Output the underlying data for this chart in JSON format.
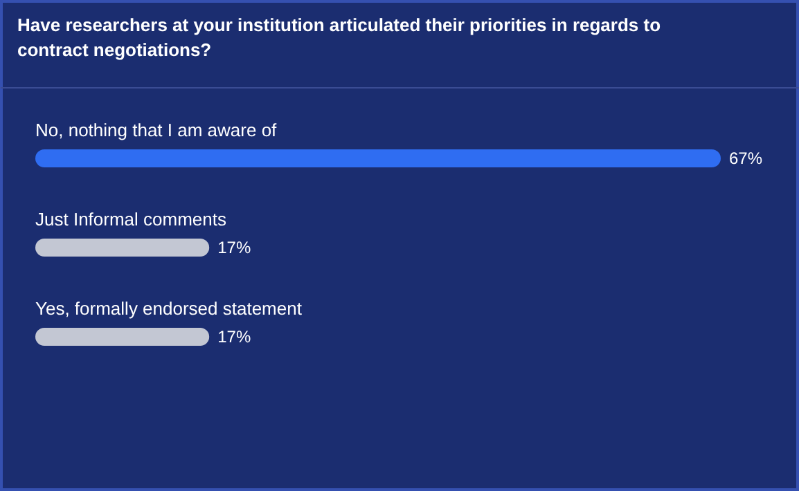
{
  "chart_data": {
    "type": "bar",
    "orientation": "horizontal",
    "title": "Have researchers at your institution articulated their priorities in regards to contract negotiations?",
    "categories": [
      "No, nothing that I am aware of",
      "Just Informal comments",
      "Yes, formally endorsed statement"
    ],
    "values": [
      67,
      17,
      17
    ],
    "value_labels": [
      "67%",
      "17%",
      "17%"
    ],
    "colors": [
      "#2f6df2",
      "#c3c7d3",
      "#c3c7d3"
    ]
  }
}
